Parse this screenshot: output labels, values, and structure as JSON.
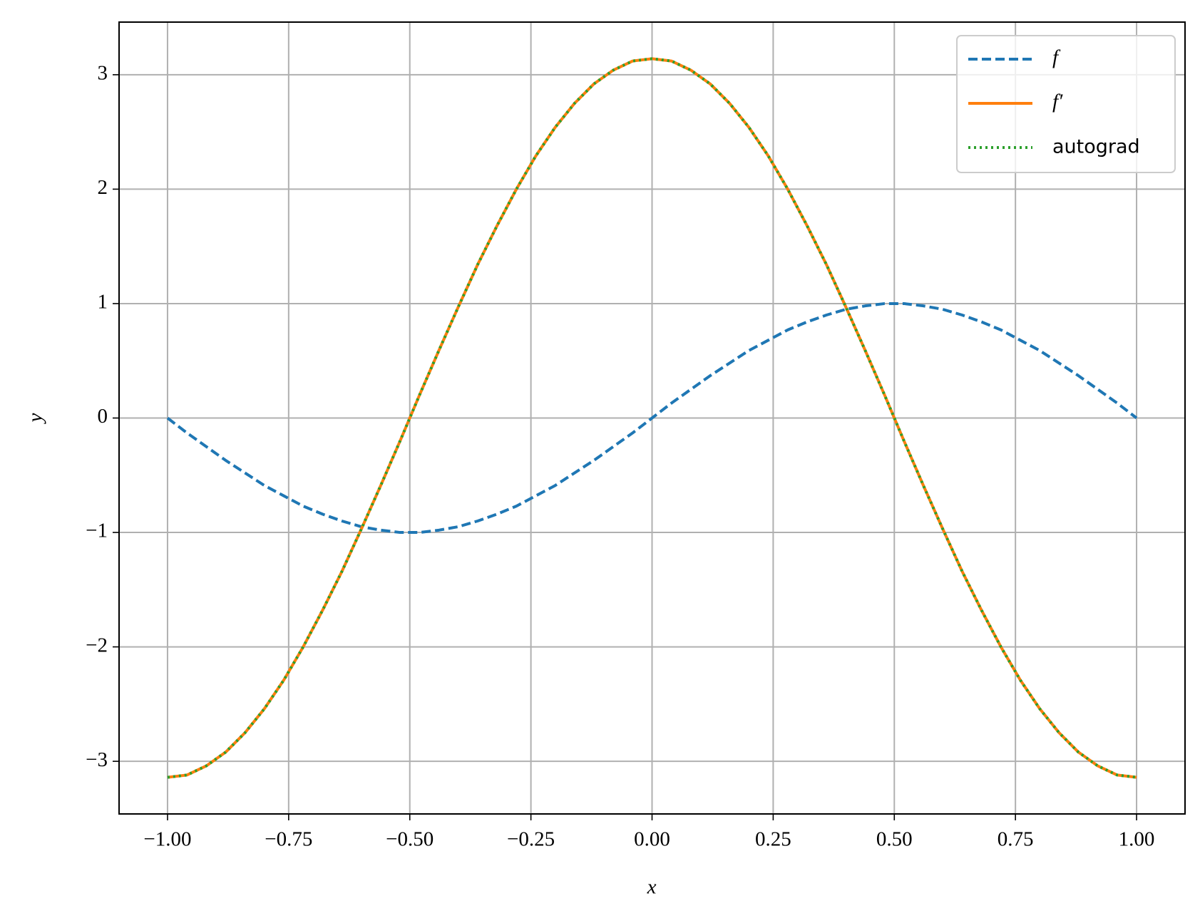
{
  "chart_data": {
    "type": "line",
    "xlabel": "x",
    "ylabel": "y",
    "x": [
      -1,
      -0.96,
      -0.92,
      -0.88,
      -0.84,
      -0.8,
      -0.76,
      -0.72,
      -0.68,
      -0.64,
      -0.6,
      -0.56,
      -0.52,
      -0.48,
      -0.44,
      -0.4,
      -0.36,
      -0.32,
      -0.28,
      -0.24,
      -0.2,
      -0.16,
      -0.12,
      -0.08,
      -0.04,
      0,
      0.04,
      0.08,
      0.12,
      0.16,
      0.2,
      0.24,
      0.28,
      0.32,
      0.36,
      0.4,
      0.44,
      0.48,
      0.52,
      0.56,
      0.6,
      0.64,
      0.68,
      0.72,
      0.76,
      0.8,
      0.84,
      0.88,
      0.92,
      0.96,
      1
    ],
    "series": [
      {
        "name": "f",
        "color": "#1f77b4",
        "linestyle": "dashed",
        "values": [
          0,
          -0.13,
          -0.25,
          -0.37,
          -0.48,
          -0.59,
          -0.68,
          -0.77,
          -0.84,
          -0.9,
          -0.95,
          -0.98,
          -1,
          -1,
          -0.98,
          -0.95,
          -0.9,
          -0.84,
          -0.77,
          -0.68,
          -0.59,
          -0.48,
          -0.37,
          -0.25,
          -0.13,
          0,
          0.13,
          0.25,
          0.37,
          0.48,
          0.59,
          0.68,
          0.77,
          0.84,
          0.9,
          0.95,
          0.98,
          1,
          1,
          0.98,
          0.95,
          0.9,
          0.84,
          0.77,
          0.68,
          0.59,
          0.48,
          0.37,
          0.25,
          0.13,
          0
        ]
      },
      {
        "name": "f′",
        "color": "#ff7f0e",
        "linestyle": "solid",
        "values": [
          -3.14,
          -3.12,
          -3.04,
          -2.92,
          -2.75,
          -2.54,
          -2.29,
          -2.0,
          -1.68,
          -1.34,
          -0.97,
          -0.59,
          -0.2,
          0.2,
          0.59,
          0.97,
          1.34,
          1.68,
          2.0,
          2.29,
          2.54,
          2.75,
          2.92,
          3.04,
          3.12,
          3.14,
          3.12,
          3.04,
          2.92,
          2.75,
          2.54,
          2.29,
          2.0,
          1.68,
          1.34,
          0.97,
          0.59,
          0.2,
          -0.2,
          -0.59,
          -0.97,
          -1.34,
          -1.68,
          -2.0,
          -2.29,
          -2.54,
          -2.75,
          -2.92,
          -3.04,
          -3.12,
          -3.14
        ]
      },
      {
        "name": "autograd",
        "color": "#2ca02c",
        "linestyle": "dotted",
        "values": [
          -3.14,
          -3.12,
          -3.04,
          -2.92,
          -2.75,
          -2.54,
          -2.29,
          -2.0,
          -1.68,
          -1.34,
          -0.97,
          -0.59,
          -0.2,
          0.2,
          0.59,
          0.97,
          1.34,
          1.68,
          2.0,
          2.29,
          2.54,
          2.75,
          2.92,
          3.04,
          3.12,
          3.14,
          3.12,
          3.04,
          2.92,
          2.75,
          2.54,
          2.29,
          2.0,
          1.68,
          1.34,
          0.97,
          0.59,
          0.2,
          -0.2,
          -0.59,
          -0.97,
          -1.34,
          -1.68,
          -2.0,
          -2.29,
          -2.54,
          -2.75,
          -2.92,
          -3.04,
          -3.12,
          -3.14
        ]
      }
    ],
    "xlim": [
      -1.1,
      1.1
    ],
    "ylim": [
      -3.46,
      3.46
    ],
    "xticks": [
      {
        "value": -1,
        "label": "−1.00"
      },
      {
        "value": -0.75,
        "label": "−0.75"
      },
      {
        "value": -0.5,
        "label": "−0.50"
      },
      {
        "value": -0.25,
        "label": "−0.25"
      },
      {
        "value": 0,
        "label": "0.00"
      },
      {
        "value": 0.25,
        "label": "0.25"
      },
      {
        "value": 0.5,
        "label": "0.50"
      },
      {
        "value": 0.75,
        "label": "0.75"
      },
      {
        "value": 1,
        "label": "1.00"
      }
    ],
    "yticks": [
      {
        "value": -3,
        "label": "−3"
      },
      {
        "value": -2,
        "label": "−2"
      },
      {
        "value": -1,
        "label": "−1"
      },
      0,
      1,
      2,
      3
    ],
    "grid": true,
    "legend": "upper right"
  }
}
